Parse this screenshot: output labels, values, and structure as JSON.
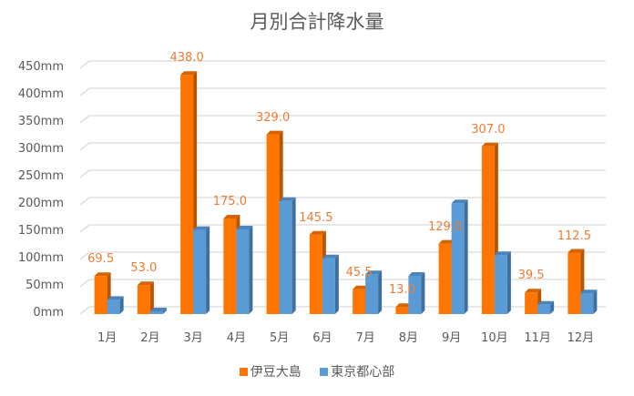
{
  "chart_data": {
    "type": "bar",
    "title": "月別合計降水量",
    "xlabel": "",
    "ylabel": "",
    "ylim": [
      0,
      450
    ],
    "yticks": [
      "0mm",
      "50mm",
      "100mm",
      "150mm",
      "200mm",
      "250mm",
      "300mm",
      "350mm",
      "400mm",
      "450mm"
    ],
    "categories": [
      "1月",
      "2月",
      "3月",
      "4月",
      "5月",
      "6月",
      "7月",
      "8月",
      "9月",
      "10月",
      "11月",
      "12月"
    ],
    "series": [
      {
        "name": "伊豆大島",
        "color": "#FF7500",
        "values": [
          69.5,
          53.0,
          438.0,
          175.0,
          329.0,
          145.5,
          45.5,
          13.0,
          129.0,
          307.0,
          39.5,
          112.5
        ]
      },
      {
        "name": "東京都心部",
        "color": "#5B9BD5",
        "values": [
          26,
          5,
          154,
          155,
          207,
          102,
          73,
          70,
          203,
          108,
          17,
          38
        ]
      }
    ],
    "data_labels": [
      "69.5",
      "53.0",
      "438.0",
      "175.0",
      "329.0",
      "145.5",
      "45.5",
      "13.0",
      "129.0",
      "307.0",
      "39.5",
      "112.5"
    ],
    "grid": true,
    "legend_position": "bottom",
    "style": "3d-clustered-column"
  }
}
